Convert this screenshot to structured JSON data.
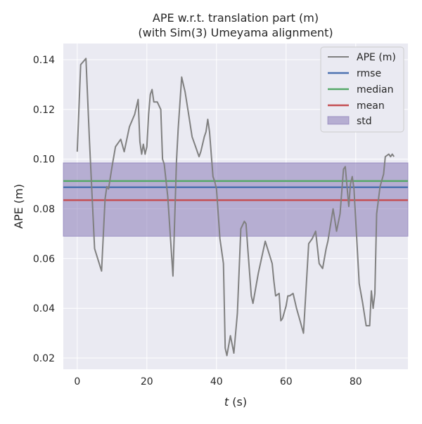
{
  "chart_data": {
    "type": "line",
    "title": "APE w.r.t. translation part (m)",
    "subtitle": "(with Sim(3) Umeyama alignment)",
    "xlabel_italic": "t",
    "xlabel_unit": " (s)",
    "ylabel": "APE (m)",
    "xlim": [
      -4,
      95
    ],
    "ylim": [
      0.0155,
      0.1465
    ],
    "xticks": [
      0,
      20,
      40,
      60,
      80
    ],
    "xtick_labels": [
      "0",
      "20",
      "40",
      "60",
      "80"
    ],
    "yticks": [
      0.02,
      0.04,
      0.06,
      0.08,
      0.1,
      0.12,
      0.14
    ],
    "ytick_labels": [
      "0.02",
      "0.04",
      "0.06",
      "0.08",
      "0.10",
      "0.12",
      "0.14"
    ],
    "grid": true,
    "legend_position": "top-right",
    "colors": {
      "background": "#eaeaf2",
      "grid": "#ffffff",
      "ape": "#808080",
      "rmse": "#4c72b0",
      "median": "#55a868",
      "mean": "#c44e52",
      "std_fill": "#8172b2"
    },
    "legend": {
      "ape": "APE (m)",
      "rmse": "rmse",
      "median": "median",
      "mean": "mean",
      "std": "std"
    },
    "stats": {
      "rmse": 0.0887,
      "median": 0.0912,
      "mean": 0.0835,
      "std_low": 0.069,
      "std_high": 0.0985
    },
    "series": [
      {
        "name": "APE (m)",
        "x": [
          0,
          1,
          2.5,
          3.5,
          5,
          7,
          8,
          8.5,
          9,
          10,
          11,
          12,
          12.5,
          13.5,
          15,
          16.5,
          17.5,
          18,
          18.5,
          19,
          19.5,
          20,
          20.5,
          21,
          21.5,
          22,
          23,
          24,
          24.5,
          25,
          26,
          27.5,
          28.5,
          29,
          30,
          31,
          32,
          33,
          34,
          35,
          35.5,
          36.5,
          37,
          37.5,
          38,
          39,
          39.5,
          40,
          41,
          42,
          42.5,
          43,
          44,
          45,
          46,
          47,
          48,
          48.5,
          49,
          50,
          50.5,
          52,
          54,
          56,
          56.5,
          57,
          58,
          58.5,
          59,
          60,
          60.5,
          61,
          62,
          63,
          64,
          65,
          66.5,
          67.5,
          68.5,
          69.5,
          70.5,
          71.5,
          72,
          73.5,
          74.5,
          75.5,
          76.5,
          77,
          78,
          78.5,
          79,
          79.5,
          81,
          82,
          83,
          84,
          84.5,
          85,
          85.5,
          86,
          87,
          88,
          88.5,
          89.5,
          90,
          90.5,
          91
        ],
        "y": [
          0.103,
          0.138,
          0.1405,
          0.108,
          0.064,
          0.055,
          0.084,
          0.089,
          0.088,
          0.097,
          0.105,
          0.107,
          0.108,
          0.103,
          0.113,
          0.118,
          0.124,
          0.107,
          0.102,
          0.106,
          0.102,
          0.105,
          0.118,
          0.126,
          0.128,
          0.123,
          0.123,
          0.12,
          0.1,
          0.098,
          0.085,
          0.053,
          0.099,
          0.112,
          0.133,
          0.127,
          0.118,
          0.109,
          0.105,
          0.101,
          0.103,
          0.109,
          0.111,
          0.116,
          0.111,
          0.093,
          0.091,
          0.088,
          0.068,
          0.058,
          0.024,
          0.021,
          0.029,
          0.022,
          0.038,
          0.072,
          0.075,
          0.074,
          0.064,
          0.045,
          0.042,
          0.054,
          0.067,
          0.058,
          0.051,
          0.045,
          0.046,
          0.035,
          0.036,
          0.041,
          0.045,
          0.045,
          0.046,
          0.04,
          0.035,
          0.03,
          0.066,
          0.068,
          0.071,
          0.058,
          0.056,
          0.064,
          0.067,
          0.08,
          0.071,
          0.078,
          0.096,
          0.097,
          0.081,
          0.09,
          0.093,
          0.088,
          0.05,
          0.042,
          0.033,
          0.033,
          0.047,
          0.04,
          0.046,
          0.078,
          0.089,
          0.094,
          0.101,
          0.102,
          0.101,
          0.102,
          0.101
        ]
      }
    ]
  }
}
